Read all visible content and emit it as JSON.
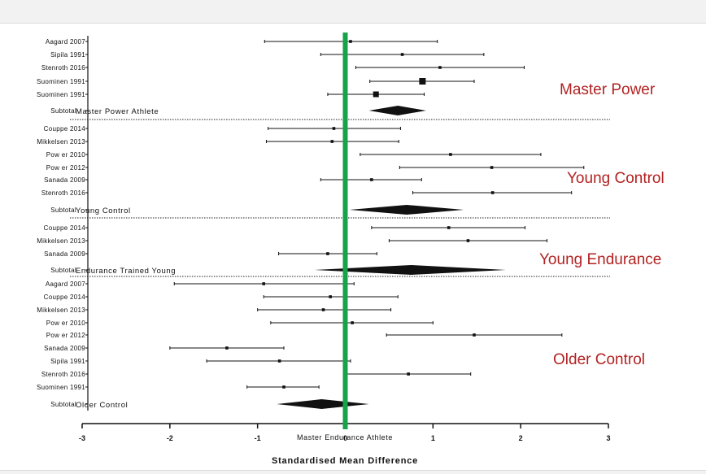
{
  "chart_data": {
    "type": "forest",
    "xlabel": "Standardised Mean Difference",
    "xlim": [
      -3,
      3
    ],
    "xticks": [
      -3,
      -2,
      -1,
      0,
      1,
      2,
      3
    ],
    "xtick_labels": [
      "-3",
      "-2",
      "-1",
      "0",
      "1",
      "2",
      "3"
    ],
    "reference_line": {
      "x": 0.0,
      "label": "Master Endurance Athlete",
      "color": "#16a34a"
    },
    "annotation_color": "#b22222",
    "groups": [
      {
        "annotation": "Master Power",
        "studies": [
          {
            "label": "Aagard 2007",
            "est": 0.06,
            "lo": -0.92,
            "hi": 1.05
          },
          {
            "label": "Sipila 1991",
            "est": 0.65,
            "lo": -0.28,
            "hi": 1.58
          },
          {
            "label": "Stenroth 2016",
            "est": 1.08,
            "lo": 0.12,
            "hi": 2.04
          },
          {
            "label": "Suominen 1991",
            "est": 0.88,
            "lo": 0.28,
            "hi": 1.47
          },
          {
            "label": "Suominen 1991",
            "est": 0.35,
            "lo": -0.2,
            "hi": 0.9
          }
        ],
        "subtotal": {
          "label": "Subtotal",
          "name": "Master Power Athlete",
          "est": 0.6,
          "lo": 0.27,
          "hi": 0.92
        }
      },
      {
        "annotation": "Young Control",
        "studies": [
          {
            "label": "Couppe 2014",
            "est": -0.13,
            "lo": -0.88,
            "hi": 0.63
          },
          {
            "label": "Mikkelsen 2013",
            "est": -0.15,
            "lo": -0.9,
            "hi": 0.61
          },
          {
            "label": "Pow er 2010",
            "est": 1.2,
            "lo": 0.17,
            "hi": 2.23
          },
          {
            "label": "Pow er 2012",
            "est": 1.67,
            "lo": 0.62,
            "hi": 2.72
          },
          {
            "label": "Sanada 2009",
            "est": 0.3,
            "lo": -0.28,
            "hi": 0.87
          },
          {
            "label": "Stenroth 2016",
            "est": 1.68,
            "lo": 0.77,
            "hi": 2.58
          }
        ],
        "subtotal": {
          "label": "Subtotal",
          "name": "Young Control",
          "est": 0.7,
          "lo": 0.05,
          "hi": 1.35
        }
      },
      {
        "annotation": "Young Endurance",
        "studies": [
          {
            "label": "Couppe 2014",
            "est": 1.18,
            "lo": 0.3,
            "hi": 2.05
          },
          {
            "label": "Mikkelsen 2013",
            "est": 1.4,
            "lo": 0.5,
            "hi": 2.3
          },
          {
            "label": "Sanada 2009",
            "est": -0.2,
            "lo": -0.76,
            "hi": 0.36
          }
        ],
        "subtotal": {
          "label": "Subtotal",
          "name": "Endurance Trained Young",
          "est": 0.75,
          "lo": -0.35,
          "hi": 1.83
        }
      },
      {
        "annotation": "Older Control",
        "studies": [
          {
            "label": "Aagard 2007",
            "est": -0.93,
            "lo": -1.95,
            "hi": 0.1
          },
          {
            "label": "Couppe 2014",
            "est": -0.17,
            "lo": -0.93,
            "hi": 0.6
          },
          {
            "label": "Mikkelsen 2013",
            "est": -0.25,
            "lo": -1.0,
            "hi": 0.52
          },
          {
            "label": "Pow er 2010",
            "est": 0.08,
            "lo": -0.85,
            "hi": 1.0
          },
          {
            "label": "Pow er 2012",
            "est": 1.47,
            "lo": 0.47,
            "hi": 2.47
          },
          {
            "label": "Sanada 2009",
            "est": -1.35,
            "lo": -2.0,
            "hi": -0.7
          },
          {
            "label": "Sipila 1991",
            "est": -0.75,
            "lo": -1.58,
            "hi": 0.06
          },
          {
            "label": "Stenroth 2016",
            "est": 0.72,
            "lo": 0.02,
            "hi": 1.43
          },
          {
            "label": "Suominen 1991",
            "est": -0.7,
            "lo": -1.12,
            "hi": -0.3
          }
        ],
        "subtotal": {
          "label": "Subtotal",
          "name": "Older Control",
          "est": -0.27,
          "lo": -0.78,
          "hi": 0.27
        }
      }
    ]
  }
}
